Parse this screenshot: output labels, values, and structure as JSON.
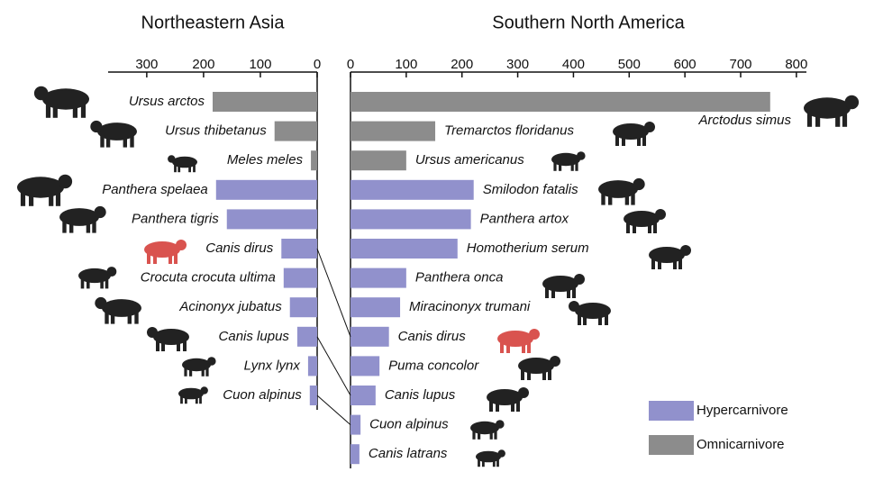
{
  "chart_data": [
    {
      "type": "bar",
      "orientation": "horizontal",
      "x_reversed": true,
      "title": "Northeastern Asia",
      "categories": [
        "Ursus arctos",
        "Ursus thibetanus",
        "Meles meles",
        "Panthera spelaea",
        "Panthera tigris",
        "Canis dirus",
        "Crocuta crocuta ultima",
        "Acinonyx jubatus",
        "Canis lupus",
        "Lynx lynx",
        "Cuon alpinus"
      ],
      "values": [
        184,
        75,
        11,
        178,
        159,
        63,
        59,
        48,
        35,
        16,
        13
      ],
      "colors": [
        "#8c8c8c",
        "#8c8c8c",
        "#8c8c8c",
        "#9191cc",
        "#9191cc",
        "#9191cc",
        "#9191cc",
        "#9191cc",
        "#9191cc",
        "#9191cc",
        "#9191cc"
      ],
      "xlim": [
        0,
        368
      ],
      "xticks": [
        0,
        100,
        200,
        300
      ]
    },
    {
      "type": "bar",
      "orientation": "horizontal",
      "x_reversed": false,
      "title": "Southern North America",
      "categories": [
        "Arctodus simus",
        "Tremarctos floridanus",
        "Ursus americanus",
        "Smilodon fatalis",
        "Panthera artox",
        "Homotherium serum",
        "Panthera onca",
        "Miracinonyx trumani",
        "Canis dirus",
        "Puma concolor",
        "Canis lupus",
        "Cuon alpinus",
        "Canis latrans"
      ],
      "values": [
        753,
        152,
        100,
        221,
        216,
        192,
        100,
        89,
        69,
        52,
        45,
        18,
        16
      ],
      "colors": [
        "#8c8c8c",
        "#8c8c8c",
        "#8c8c8c",
        "#9191cc",
        "#9191cc",
        "#9191cc",
        "#9191cc",
        "#9191cc",
        "#9191cc",
        "#9191cc",
        "#9191cc",
        "#9191cc",
        "#9191cc"
      ],
      "xlim": [
        0,
        818
      ],
      "xticks": [
        0,
        100,
        200,
        300,
        400,
        500,
        600,
        700,
        800
      ]
    }
  ],
  "legend": [
    {
      "name": "Hypercarnivore",
      "color": "#9191cc"
    },
    {
      "name": "Omnicarnivore",
      "color": "#8c8c8c"
    }
  ]
}
